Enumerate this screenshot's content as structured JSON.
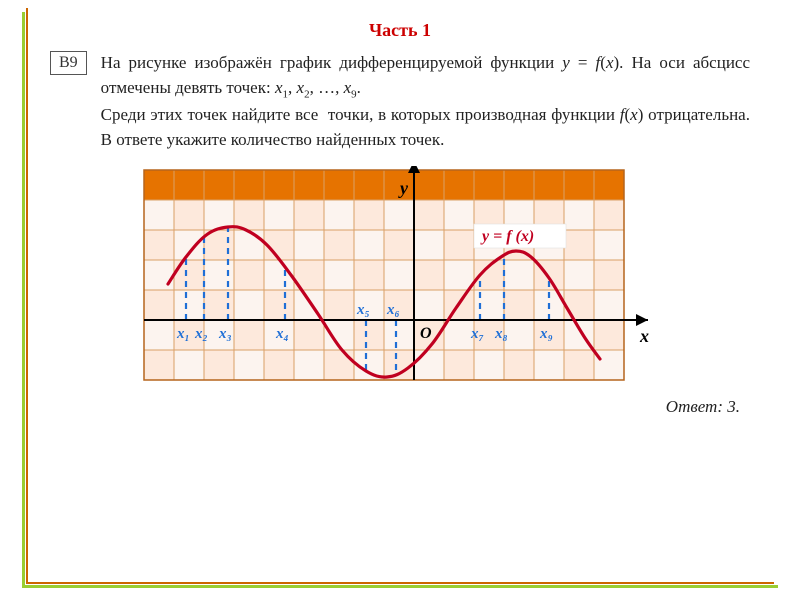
{
  "heading": "Часть 1",
  "tag": "В9",
  "prompt_html": "На рисунке изображён график дифференцируемой функции <i>y</i> = <i>f</i>(<i>x</i>). На оси абсцисс отмечены девять точек: <i>x</i><span class='sub'>1</span>, <i>x</i><span class='sub'>2</span>, …, <i>x</i><span class='sub'>9</span>.<br>Среди этих точек найдите все&nbsp; точки, в которых производная функции <i>f</i>(<i>x</i>) отрицательна. В ответе укажите количество найденных точек.",
  "answer_label": "Ответ:",
  "answer_value": "3.",
  "chart": {
    "cell": 30,
    "cols": 16,
    "rows": 7,
    "origin_col": 9,
    "origin_row": 5,
    "header_color": "#e67300",
    "cell_fill": "#fde9dc",
    "cell_alt_fill": "#fcf4ef",
    "grid_color": "#d9a066",
    "axis_color": "#000000",
    "curve_color": "#c00020",
    "curve_width": 3.2,
    "dash_color": "#1f6fd6",
    "dash_width": 2.2,
    "dash_pattern": "6,5",
    "fn_label": "y = f (x)",
    "fn_label_bg": "#ffffff",
    "fn_label_color": "#c00020",
    "axis_label_color": "#000000",
    "x_label": "x",
    "y_label": "y",
    "o_label": "O",
    "point_label_color": "#1f6fd6",
    "curve_pts": [
      [
        -8.2,
        1.2
      ],
      [
        -7.6,
        2.1
      ],
      [
        -6.9,
        2.85
      ],
      [
        -6.2,
        3.1
      ],
      [
        -5.6,
        3.0
      ],
      [
        -4.9,
        2.5
      ],
      [
        -4.1,
        1.5
      ],
      [
        -3.2,
        0.2
      ],
      [
        -2.4,
        -1.0
      ],
      [
        -1.6,
        -1.7
      ],
      [
        -0.9,
        -1.9
      ],
      [
        -0.2,
        -1.6
      ],
      [
        0.6,
        -0.8
      ],
      [
        1.4,
        0.4
      ],
      [
        2.2,
        1.5
      ],
      [
        2.9,
        2.1
      ],
      [
        3.4,
        2.3
      ],
      [
        3.9,
        2.1
      ],
      [
        4.5,
        1.4
      ],
      [
        5.1,
        0.4
      ],
      [
        5.7,
        -0.6
      ],
      [
        6.2,
        -1.3
      ]
    ],
    "points": [
      {
        "name": "x1",
        "x": -7.6,
        "label": "x₁",
        "y_on_curve": 2.1,
        "label_below": true
      },
      {
        "name": "x2",
        "x": -7.0,
        "label": "x₂",
        "y_on_curve": 2.85,
        "label_below": true
      },
      {
        "name": "x3",
        "x": -6.2,
        "label": "x₃",
        "y_on_curve": 3.1,
        "label_below": true
      },
      {
        "name": "x4",
        "x": -4.3,
        "label": "x₄",
        "y_on_curve": 1.8,
        "label_below": true
      },
      {
        "name": "x5",
        "x": -1.6,
        "label": "x₅",
        "y_on_curve": -1.7,
        "label_below": false
      },
      {
        "name": "x6",
        "x": -0.6,
        "label": "x₆",
        "y_on_curve": -1.75,
        "label_below": false
      },
      {
        "name": "x7",
        "x": 2.2,
        "label": "x₇",
        "y_on_curve": 1.5,
        "label_below": true
      },
      {
        "name": "x8",
        "x": 3.0,
        "label": "x₈",
        "y_on_curve": 2.15,
        "label_below": true
      },
      {
        "name": "x9",
        "x": 4.5,
        "label": "x₉",
        "y_on_curve": 1.4,
        "label_below": true
      }
    ]
  }
}
